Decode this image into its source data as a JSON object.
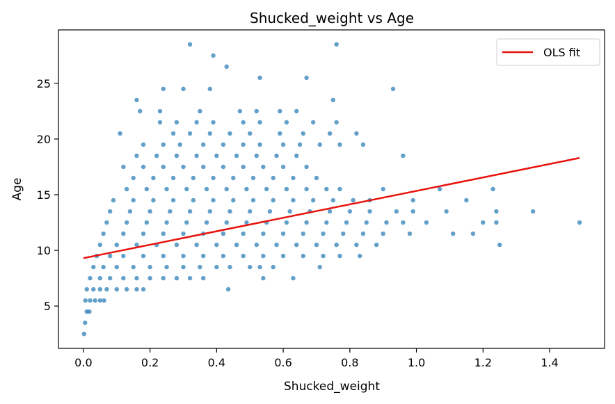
{
  "chart_data": {
    "type": "scatter",
    "title": "Shucked_weight vs Age",
    "xlabel": "Shucked_weight",
    "ylabel": "Age",
    "xlim": [
      -0.075,
      1.565
    ],
    "ylim": [
      1.2,
      29.8
    ],
    "xticks": [
      0.0,
      0.2,
      0.4,
      0.6,
      0.8,
      1.0,
      1.2,
      1.4
    ],
    "xtick_labels": [
      "0.0",
      "0.2",
      "0.4",
      "0.6",
      "0.8",
      "1.0",
      "1.2",
      "1.4"
    ],
    "yticks": [
      5,
      10,
      15,
      20,
      25
    ],
    "ytick_labels": [
      "5",
      "10",
      "15",
      "20",
      "25"
    ],
    "grid": false,
    "legend": {
      "position": "top-right",
      "entries": [
        {
          "label": "OLS fit",
          "color": "#e8120c",
          "marker": "line"
        }
      ]
    },
    "colors": {
      "points": "#1f77b4",
      "fit": "#e8120c"
    },
    "series": [
      {
        "name": "",
        "kind": "scatter",
        "points": [
          [
            0.002,
            2.5
          ],
          [
            0.005,
            3.5
          ],
          [
            0.01,
            4.5
          ],
          [
            0.018,
            4.5
          ],
          [
            0.006,
            5.5
          ],
          [
            0.02,
            5.5
          ],
          [
            0.035,
            5.5
          ],
          [
            0.05,
            5.5
          ],
          [
            0.062,
            5.5
          ],
          [
            0.01,
            6.5
          ],
          [
            0.03,
            6.5
          ],
          [
            0.05,
            6.5
          ],
          [
            0.07,
            6.5
          ],
          [
            0.1,
            6.5
          ],
          [
            0.13,
            6.5
          ],
          [
            0.16,
            6.5
          ],
          [
            0.18,
            6.5
          ],
          [
            0.435,
            6.5
          ],
          [
            0.02,
            7.5
          ],
          [
            0.05,
            7.5
          ],
          [
            0.08,
            7.5
          ],
          [
            0.12,
            7.5
          ],
          [
            0.16,
            7.5
          ],
          [
            0.2,
            7.5
          ],
          [
            0.24,
            7.5
          ],
          [
            0.28,
            7.5
          ],
          [
            0.32,
            7.5
          ],
          [
            0.36,
            7.5
          ],
          [
            0.54,
            7.5
          ],
          [
            0.63,
            7.5
          ],
          [
            0.03,
            8.5
          ],
          [
            0.06,
            8.5
          ],
          [
            0.1,
            8.5
          ],
          [
            0.15,
            8.5
          ],
          [
            0.2,
            8.5
          ],
          [
            0.25,
            8.5
          ],
          [
            0.3,
            8.5
          ],
          [
            0.35,
            8.5
          ],
          [
            0.4,
            8.5
          ],
          [
            0.44,
            8.5
          ],
          [
            0.5,
            8.5
          ],
          [
            0.53,
            8.5
          ],
          [
            0.57,
            8.5
          ],
          [
            0.71,
            8.5
          ],
          [
            0.04,
            9.5
          ],
          [
            0.08,
            9.5
          ],
          [
            0.12,
            9.5
          ],
          [
            0.18,
            9.5
          ],
          [
            0.24,
            9.5
          ],
          [
            0.3,
            9.5
          ],
          [
            0.36,
            9.5
          ],
          [
            0.42,
            9.5
          ],
          [
            0.48,
            9.5
          ],
          [
            0.54,
            9.5
          ],
          [
            0.6,
            9.5
          ],
          [
            0.66,
            9.5
          ],
          [
            0.72,
            9.5
          ],
          [
            0.77,
            9.5
          ],
          [
            0.83,
            9.5
          ],
          [
            0.05,
            10.5
          ],
          [
            0.1,
            10.5
          ],
          [
            0.16,
            10.5
          ],
          [
            0.22,
            10.5
          ],
          [
            0.28,
            10.5
          ],
          [
            0.34,
            10.5
          ],
          [
            0.4,
            10.5
          ],
          [
            0.46,
            10.5
          ],
          [
            0.52,
            10.5
          ],
          [
            0.58,
            10.5
          ],
          [
            0.64,
            10.5
          ],
          [
            0.7,
            10.5
          ],
          [
            0.76,
            10.5
          ],
          [
            0.82,
            10.5
          ],
          [
            0.88,
            10.5
          ],
          [
            1.25,
            10.5
          ],
          [
            0.06,
            11.5
          ],
          [
            0.12,
            11.5
          ],
          [
            0.18,
            11.5
          ],
          [
            0.24,
            11.5
          ],
          [
            0.3,
            11.5
          ],
          [
            0.36,
            11.5
          ],
          [
            0.42,
            11.5
          ],
          [
            0.48,
            11.5
          ],
          [
            0.54,
            11.5
          ],
          [
            0.6,
            11.5
          ],
          [
            0.66,
            11.5
          ],
          [
            0.72,
            11.5
          ],
          [
            0.78,
            11.5
          ],
          [
            0.84,
            11.5
          ],
          [
            0.9,
            11.5
          ],
          [
            0.98,
            11.5
          ],
          [
            1.11,
            11.5
          ],
          [
            1.17,
            11.5
          ],
          [
            0.07,
            12.5
          ],
          [
            0.13,
            12.5
          ],
          [
            0.19,
            12.5
          ],
          [
            0.25,
            12.5
          ],
          [
            0.31,
            12.5
          ],
          [
            0.37,
            12.5
          ],
          [
            0.43,
            12.5
          ],
          [
            0.49,
            12.5
          ],
          [
            0.55,
            12.5
          ],
          [
            0.61,
            12.5
          ],
          [
            0.67,
            12.5
          ],
          [
            0.73,
            12.5
          ],
          [
            0.79,
            12.5
          ],
          [
            0.85,
            12.5
          ],
          [
            0.91,
            12.5
          ],
          [
            0.96,
            12.5
          ],
          [
            1.03,
            12.5
          ],
          [
            1.2,
            12.5
          ],
          [
            1.24,
            12.5
          ],
          [
            1.49,
            12.5
          ],
          [
            0.08,
            13.5
          ],
          [
            0.14,
            13.5
          ],
          [
            0.2,
            13.5
          ],
          [
            0.26,
            13.5
          ],
          [
            0.32,
            13.5
          ],
          [
            0.38,
            13.5
          ],
          [
            0.44,
            13.5
          ],
          [
            0.5,
            13.5
          ],
          [
            0.56,
            13.5
          ],
          [
            0.62,
            13.5
          ],
          [
            0.68,
            13.5
          ],
          [
            0.74,
            13.5
          ],
          [
            0.8,
            13.5
          ],
          [
            0.86,
            13.5
          ],
          [
            0.94,
            13.5
          ],
          [
            0.99,
            13.5
          ],
          [
            1.09,
            13.5
          ],
          [
            1.24,
            13.5
          ],
          [
            1.35,
            13.5
          ],
          [
            0.09,
            14.5
          ],
          [
            0.15,
            14.5
          ],
          [
            0.21,
            14.5
          ],
          [
            0.27,
            14.5
          ],
          [
            0.33,
            14.5
          ],
          [
            0.39,
            14.5
          ],
          [
            0.45,
            14.5
          ],
          [
            0.51,
            14.5
          ],
          [
            0.57,
            14.5
          ],
          [
            0.63,
            14.5
          ],
          [
            0.69,
            14.5
          ],
          [
            0.75,
            14.5
          ],
          [
            0.81,
            14.5
          ],
          [
            0.86,
            14.5
          ],
          [
            0.99,
            14.5
          ],
          [
            1.15,
            14.5
          ],
          [
            0.13,
            15.5
          ],
          [
            0.19,
            15.5
          ],
          [
            0.25,
            15.5
          ],
          [
            0.31,
            15.5
          ],
          [
            0.37,
            15.5
          ],
          [
            0.43,
            15.5
          ],
          [
            0.49,
            15.5
          ],
          [
            0.55,
            15.5
          ],
          [
            0.61,
            15.5
          ],
          [
            0.67,
            15.5
          ],
          [
            0.73,
            15.5
          ],
          [
            0.77,
            15.5
          ],
          [
            0.9,
            15.5
          ],
          [
            1.07,
            15.5
          ],
          [
            1.23,
            15.5
          ],
          [
            0.15,
            16.5
          ],
          [
            0.21,
            16.5
          ],
          [
            0.27,
            16.5
          ],
          [
            0.33,
            16.5
          ],
          [
            0.39,
            16.5
          ],
          [
            0.45,
            16.5
          ],
          [
            0.51,
            16.5
          ],
          [
            0.57,
            16.5
          ],
          [
            0.63,
            16.5
          ],
          [
            0.7,
            16.5
          ],
          [
            0.12,
            17.5
          ],
          [
            0.18,
            17.5
          ],
          [
            0.24,
            17.5
          ],
          [
            0.3,
            17.5
          ],
          [
            0.36,
            17.5
          ],
          [
            0.42,
            17.5
          ],
          [
            0.48,
            17.5
          ],
          [
            0.54,
            17.5
          ],
          [
            0.6,
            17.5
          ],
          [
            0.67,
            17.5
          ],
          [
            0.16,
            18.5
          ],
          [
            0.22,
            18.5
          ],
          [
            0.28,
            18.5
          ],
          [
            0.34,
            18.5
          ],
          [
            0.4,
            18.5
          ],
          [
            0.46,
            18.5
          ],
          [
            0.52,
            18.5
          ],
          [
            0.58,
            18.5
          ],
          [
            0.64,
            18.5
          ],
          [
            0.96,
            18.5
          ],
          [
            0.18,
            19.5
          ],
          [
            0.24,
            19.5
          ],
          [
            0.29,
            19.5
          ],
          [
            0.36,
            19.5
          ],
          [
            0.42,
            19.5
          ],
          [
            0.48,
            19.5
          ],
          [
            0.53,
            19.5
          ],
          [
            0.6,
            19.5
          ],
          [
            0.65,
            19.5
          ],
          [
            0.71,
            19.5
          ],
          [
            0.77,
            19.5
          ],
          [
            0.84,
            19.5
          ],
          [
            0.11,
            20.5
          ],
          [
            0.27,
            20.5
          ],
          [
            0.32,
            20.5
          ],
          [
            0.38,
            20.5
          ],
          [
            0.44,
            20.5
          ],
          [
            0.5,
            20.5
          ],
          [
            0.59,
            20.5
          ],
          [
            0.66,
            20.5
          ],
          [
            0.74,
            20.5
          ],
          [
            0.82,
            20.5
          ],
          [
            0.23,
            21.5
          ],
          [
            0.28,
            21.5
          ],
          [
            0.34,
            21.5
          ],
          [
            0.39,
            21.5
          ],
          [
            0.48,
            21.5
          ],
          [
            0.53,
            21.5
          ],
          [
            0.61,
            21.5
          ],
          [
            0.69,
            21.5
          ],
          [
            0.76,
            21.5
          ],
          [
            0.17,
            22.5
          ],
          [
            0.23,
            22.5
          ],
          [
            0.35,
            22.5
          ],
          [
            0.47,
            22.5
          ],
          [
            0.52,
            22.5
          ],
          [
            0.59,
            22.5
          ],
          [
            0.64,
            22.5
          ],
          [
            0.16,
            23.5
          ],
          [
            0.75,
            23.5
          ],
          [
            0.24,
            24.5
          ],
          [
            0.3,
            24.5
          ],
          [
            0.38,
            24.5
          ],
          [
            0.93,
            24.5
          ],
          [
            0.53,
            25.5
          ],
          [
            0.67,
            25.5
          ],
          [
            0.43,
            26.5
          ],
          [
            0.39,
            27.5
          ],
          [
            0.32,
            28.5
          ],
          [
            0.76,
            28.5
          ]
        ]
      },
      {
        "name": "OLS fit",
        "kind": "line",
        "x": [
          0.0,
          1.49
        ],
        "y": [
          9.3,
          18.3
        ]
      }
    ]
  }
}
